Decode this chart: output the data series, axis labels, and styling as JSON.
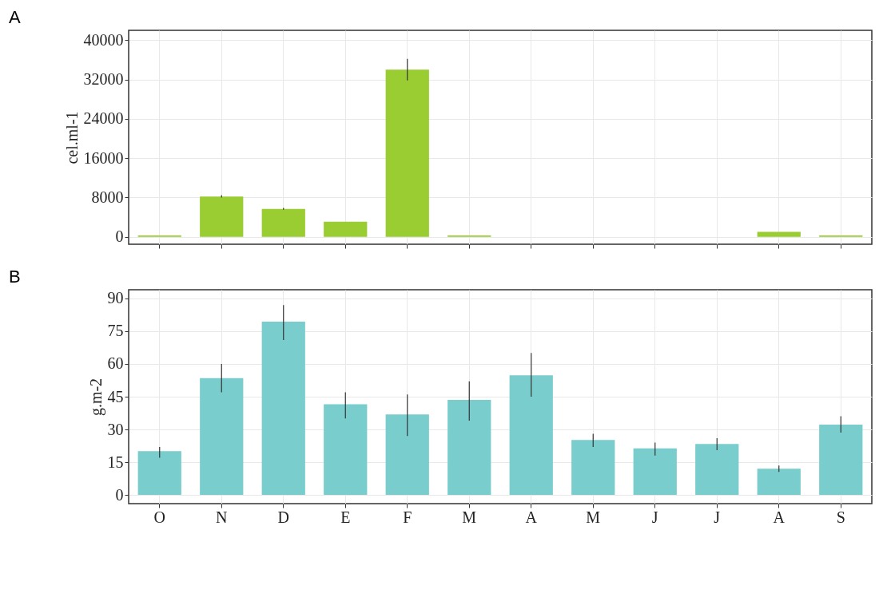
{
  "chart_data": [
    {
      "type": "bar",
      "title": "A",
      "ylabel": "cel.ml-1",
      "categories": [
        null,
        null,
        null,
        null,
        null,
        null,
        null,
        null,
        null,
        null,
        null,
        null
      ],
      "tick_labels": "y",
      "grid": true,
      "values": [
        300,
        8200,
        5700,
        3100,
        34000,
        300,
        0,
        0,
        0,
        0,
        1000,
        300
      ],
      "errors": [
        null,
        [
          8000,
          8500
        ],
        [
          5500,
          5900
        ],
        null,
        [
          31800,
          36200
        ],
        null,
        null,
        null,
        null,
        null,
        null,
        null
      ],
      "color": "#9acd32",
      "ylim": [
        -1500,
        42000
      ],
      "yticks": [
        0,
        8000,
        16000,
        24000,
        32000,
        40000
      ]
    },
    {
      "type": "bar",
      "title": "B",
      "ylabel": "g.m-2",
      "categories": [
        "O",
        "N",
        "D",
        "E",
        "F",
        "M",
        "A",
        "M",
        "J",
        "J",
        "A",
        "S"
      ],
      "grid": true,
      "values": [
        20,
        53.5,
        79.4,
        41.5,
        36.9,
        43.5,
        54.8,
        25.2,
        21.3,
        23.3,
        12,
        32.2
      ],
      "errors": [
        [
          17,
          22
        ],
        [
          47,
          60
        ],
        [
          71,
          87
        ],
        [
          35,
          47
        ],
        [
          27,
          46
        ],
        [
          34,
          52
        ],
        [
          45,
          65
        ],
        [
          22,
          28
        ],
        [
          18,
          24
        ],
        [
          20.5,
          26
        ],
        [
          10.5,
          13.5
        ],
        [
          28.5,
          36
        ]
      ],
      "color": "#79cdcd",
      "ylim": [
        -4,
        94
      ],
      "yticks": [
        0,
        15,
        30,
        45,
        60,
        75,
        90
      ]
    }
  ]
}
